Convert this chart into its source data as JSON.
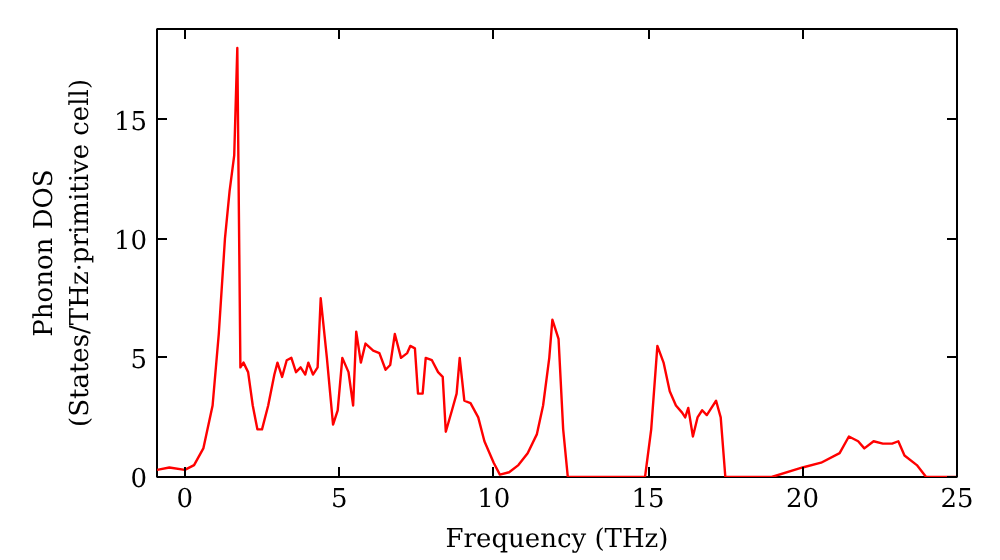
{
  "chart_data": {
    "type": "line",
    "xlabel": "Frequency (THz)",
    "ylabel": "Phonon DOS\n(States/THz·primitive cell)",
    "xlim": [
      -0.9,
      25
    ],
    "xticks": [
      0,
      5,
      10,
      15,
      20,
      25
    ],
    "ylim": [
      0,
      18.8
    ],
    "yticks": [
      0,
      5,
      10,
      15
    ],
    "grid": false,
    "marker": "none",
    "line_style": "solid",
    "series": [
      {
        "color": "#ff0000",
        "x": [
          -0.9,
          -0.5,
          0,
          0.3,
          0.6,
          0.9,
          1.1,
          1.3,
          1.45,
          1.6,
          1.7,
          1.8,
          1.9,
          2.05,
          2.2,
          2.35,
          2.5,
          2.7,
          2.9,
          3.0,
          3.15,
          3.3,
          3.45,
          3.6,
          3.75,
          3.9,
          4.0,
          4.15,
          4.3,
          4.4,
          4.6,
          4.8,
          4.95,
          5.1,
          5.3,
          5.45,
          5.55,
          5.7,
          5.85,
          6.1,
          6.3,
          6.5,
          6.65,
          6.8,
          7.0,
          7.2,
          7.3,
          7.45,
          7.55,
          7.7,
          7.8,
          8.0,
          8.2,
          8.35,
          8.45,
          8.65,
          8.8,
          8.9,
          9.05,
          9.25,
          9.5,
          9.7,
          10.0,
          10.2,
          10.5,
          10.8,
          11.1,
          11.4,
          11.6,
          11.8,
          11.9,
          12.1,
          12.25,
          12.4,
          14.9,
          15.1,
          15.3,
          15.5,
          15.7,
          15.9,
          16.1,
          16.2,
          16.3,
          16.45,
          16.6,
          16.75,
          16.9,
          17.05,
          17.2,
          17.35,
          17.5,
          19.0,
          20.0,
          20.6,
          21.2,
          21.5,
          21.8,
          22.0,
          22.3,
          22.6,
          22.9,
          23.1,
          23.3,
          23.7,
          24.0,
          25
        ],
        "values": [
          0.3,
          0.4,
          0.3,
          0.5,
          1.2,
          3,
          6,
          10,
          12,
          13.5,
          18,
          4.6,
          4.8,
          4.4,
          3,
          2,
          2,
          3,
          4.3,
          4.8,
          4.2,
          4.9,
          5,
          4.4,
          4.6,
          4.3,
          4.8,
          4.3,
          4.6,
          7.5,
          5,
          2.2,
          2.8,
          5.0,
          4.4,
          3,
          6.1,
          4.8,
          5.6,
          5.3,
          5.2,
          4.5,
          4.7,
          6.0,
          5,
          5.2,
          5.5,
          5.4,
          3.5,
          3.5,
          5,
          4.9,
          4.4,
          4.2,
          1.9,
          2.8,
          3.5,
          5.0,
          3.2,
          3.1,
          2.5,
          1.5,
          0.6,
          0.1,
          0.2,
          0.5,
          1.0,
          1.8,
          3,
          5,
          6.6,
          5.8,
          2,
          0,
          0,
          2,
          5.5,
          4.8,
          3.6,
          3.0,
          2.7,
          2.5,
          2.9,
          1.7,
          2.5,
          2.8,
          2.6,
          2.9,
          3.2,
          2.5,
          0,
          0,
          0.4,
          0.6,
          1.0,
          1.7,
          1.5,
          1.2,
          1.5,
          1.4,
          1.4,
          1.5,
          0.9,
          0.5,
          0,
          0
        ]
      }
    ]
  }
}
